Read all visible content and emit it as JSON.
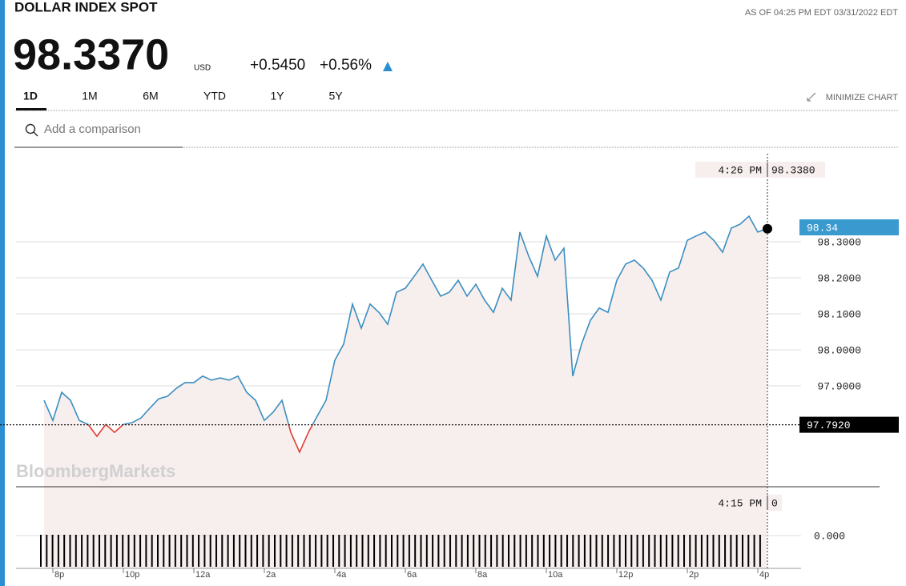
{
  "header": {
    "title": "DOLLAR INDEX SPOT",
    "as_of": "AS OF 04:25 PM EDT 03/31/2022 EDT",
    "price": "98.3370",
    "currency": "USD",
    "change": "+0.5450",
    "change_pct": "+0.56%"
  },
  "tabs": [
    "1D",
    "1M",
    "6M",
    "YTD",
    "1Y",
    "5Y"
  ],
  "minimize": "MINIMIZE CHART",
  "search_placeholder": "Add a comparison",
  "watermark": "BloombergMarkets",
  "chart_data": {
    "type": "line",
    "categories": [
      null,
      "8p",
      null,
      null,
      null,
      null,
      null,
      null,
      null,
      "10p",
      null,
      null,
      null,
      null,
      null,
      null,
      null,
      "12a",
      null,
      null,
      null,
      null,
      null,
      null,
      null,
      "2a",
      null,
      null,
      null,
      null,
      null,
      null,
      null,
      "4a",
      null,
      null,
      null,
      null,
      null,
      null,
      null,
      "6a",
      null,
      null,
      null,
      null,
      null,
      null,
      null,
      "8a",
      null,
      null,
      null,
      null,
      null,
      null,
      null,
      "10a",
      null,
      null,
      null,
      null,
      null,
      null,
      null,
      "12p",
      null,
      null,
      null,
      null,
      null,
      null,
      null,
      "2p",
      null,
      null,
      null,
      null,
      null,
      null,
      null,
      "4p",
      null
    ],
    "values": [
      97.86,
      97.804,
      97.882,
      97.86,
      97.804,
      97.793,
      97.76,
      97.793,
      97.771,
      97.793,
      97.798,
      97.811,
      97.838,
      97.864,
      97.871,
      97.893,
      97.909,
      97.909,
      97.927,
      97.916,
      97.922,
      97.916,
      97.927,
      97.882,
      97.86,
      97.804,
      97.827,
      97.86,
      97.771,
      97.716,
      97.771,
      97.816,
      97.86,
      97.971,
      98.016,
      98.127,
      98.06,
      98.127,
      98.104,
      98.071,
      98.16,
      98.171,
      98.204,
      98.238,
      98.193,
      98.149,
      98.16,
      98.193,
      98.149,
      98.182,
      98.138,
      98.104,
      98.171,
      98.138,
      98.327,
      98.26,
      98.204,
      98.316,
      98.249,
      98.282,
      97.927,
      98.016,
      98.082,
      98.116,
      98.104,
      98.193,
      98.238,
      98.249,
      98.227,
      98.193,
      98.138,
      98.216,
      98.227,
      98.304,
      98.316,
      98.327,
      98.304,
      98.271,
      98.338,
      98.349,
      98.371,
      98.327,
      98.336
    ],
    "color": "#3a8fc0",
    "below_color": "#e03c31",
    "area_color": "#f7eeee",
    "ylim": [
      97.62,
      98.54
    ],
    "yticks": [
      {
        "value": 97.9,
        "label": "97.9000"
      },
      {
        "value": 98.0,
        "label": "98.0000"
      },
      {
        "value": 98.1,
        "label": "98.1000"
      },
      {
        "value": 98.2,
        "label": "98.2000"
      },
      {
        "value": 98.3,
        "label": "98.3000"
      }
    ],
    "grid": true,
    "previous_close": {
      "value": 97.792,
      "label": "97.7920"
    },
    "last_value": 98.34,
    "crosshair": {
      "time": "4:26 PM",
      "value": {
        "value": 98.338,
        "label": "98.3380"
      }
    },
    "volume": {
      "time": "4:15 PM",
      "value": 0,
      "tick": {
        "value": 0,
        "label": "0.000"
      }
    }
  }
}
